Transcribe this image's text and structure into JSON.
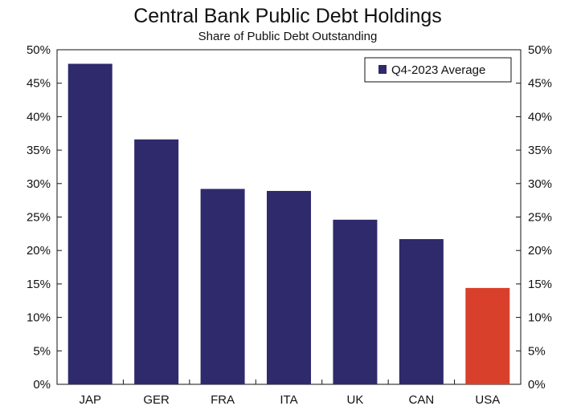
{
  "chart_data": {
    "type": "bar",
    "title": "Central Bank Public Debt Holdings",
    "subtitle": "Share of Public Debt Outstanding",
    "categories": [
      "JAP",
      "GER",
      "FRA",
      "ITA",
      "UK",
      "CAN",
      "USA"
    ],
    "series": [
      {
        "name": "Q4-2023 Average",
        "values": [
          47.9,
          36.6,
          29.2,
          28.9,
          24.6,
          21.7,
          14.4
        ],
        "colors": [
          "#2f2a6b",
          "#2f2a6b",
          "#2f2a6b",
          "#2f2a6b",
          "#2f2a6b",
          "#2f2a6b",
          "#d9402b"
        ]
      }
    ],
    "ylim": [
      0,
      50
    ],
    "yticks": [
      "0%",
      "5%",
      "10%",
      "15%",
      "20%",
      "25%",
      "30%",
      "35%",
      "40%",
      "45%",
      "50%"
    ],
    "ytick_values": [
      0,
      5,
      10,
      15,
      20,
      25,
      30,
      35,
      40,
      45,
      50
    ],
    "legend_position": "top-right",
    "grid": false,
    "dual_y_axis": true,
    "colors": {
      "bar": "#2f2a6b",
      "highlight": "#d9402b",
      "axis": "#111111"
    }
  }
}
